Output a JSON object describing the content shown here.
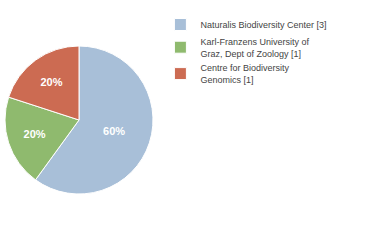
{
  "chart_data": {
    "type": "pie",
    "categories": [
      "Naturalis Biodiversity Center [3]",
      "Karl-Franzens University of\nGraz, Dept of Zoology [1]",
      "Centre for Biodiversity\nGenomics [1]"
    ],
    "values": [
      60,
      20,
      20
    ],
    "value_labels": [
      "60%",
      "20%",
      "20%"
    ],
    "colors": [
      "#a8bfd8",
      "#8fba6e",
      "#cc6b52"
    ],
    "data_labels": true,
    "legend": "right"
  }
}
